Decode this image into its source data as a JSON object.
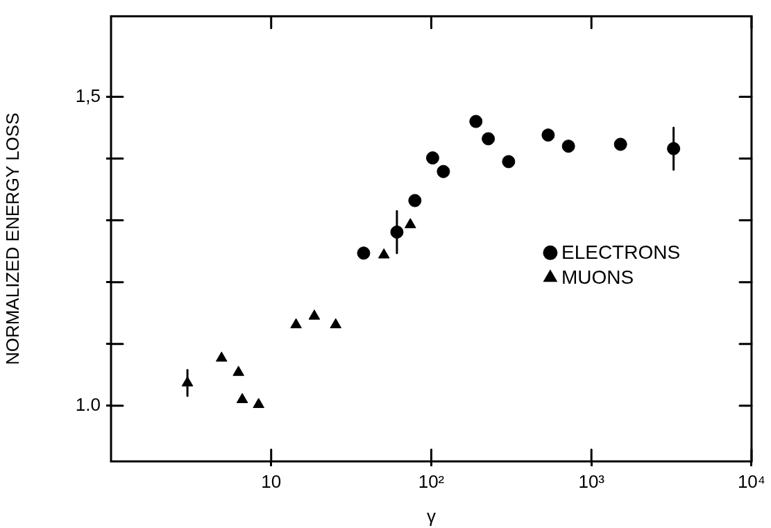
{
  "chart_data": {
    "type": "scatter",
    "xlabel": "γ",
    "ylabel": "NORMALIZED ENERGY LOSS",
    "log": "x",
    "grid": false,
    "legend": "right",
    "xlim": [
      1,
      10000
    ],
    "xticks": [
      10,
      {
        "value": 100,
        "label": "10²"
      },
      {
        "value": 1000,
        "label": "10³"
      },
      {
        "value": 10000,
        "label": "10⁴"
      }
    ],
    "ylim": [
      0.91,
      1.63
    ],
    "yticks": [
      {
        "value": 1.0,
        "label": "1.0"
      },
      {
        "value": 1.1,
        "label": null
      },
      {
        "value": 1.2,
        "label": null
      },
      {
        "value": 1.3,
        "label": null
      },
      {
        "value": 1.4,
        "label": null
      },
      {
        "value": 1.5,
        "label": "1,5"
      }
    ],
    "series": [
      {
        "name": "ELECTRONS",
        "color": "#000000",
        "marker": "circle",
        "x": [
          37.8,
          61,
          79,
          102,
          119,
          190,
          227,
          304,
          537,
          719,
          1520,
          3260
        ],
        "values": [
          1.247,
          1.281,
          1.332,
          1.401,
          1.379,
          1.46,
          1.432,
          1.395,
          1.438,
          1.42,
          1.423,
          1.416
        ],
        "errors": [
          null,
          0.034,
          null,
          null,
          null,
          null,
          null,
          null,
          null,
          null,
          null,
          0.034
        ]
      },
      {
        "name": "MUONS",
        "color": "#000000",
        "marker": "triangle",
        "x": [
          3.0,
          4.9,
          6.25,
          6.6,
          8.35,
          14.3,
          18.6,
          25.3,
          50.6,
          74
        ],
        "values": [
          1.037,
          1.077,
          1.054,
          1.01,
          1.002,
          1.131,
          1.145,
          1.131,
          1.244,
          1.293
        ],
        "errors": [
          0.021,
          null,
          null,
          null,
          null,
          null,
          null,
          null,
          null,
          null
        ]
      }
    ]
  }
}
